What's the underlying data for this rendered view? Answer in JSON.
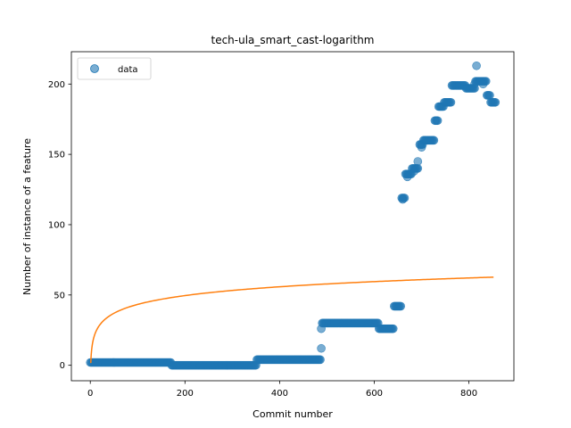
{
  "chart_data": {
    "type": "scatter",
    "title": "tech-ula_smart_cast-logarithm",
    "xlabel": "Commit number",
    "ylabel": "Number of instance of a feature",
    "xlim": [
      -40,
      895
    ],
    "ylim": [
      -11,
      223
    ],
    "xticks": [
      0,
      200,
      400,
      600,
      800
    ],
    "yticks": [
      0,
      50,
      100,
      150,
      200
    ],
    "grid": false,
    "legend": {
      "position": "top-left",
      "entries": [
        "data"
      ]
    },
    "colors": {
      "data": "#1f77b4",
      "fit": "#ff7f0e"
    },
    "series": [
      {
        "name": "data",
        "kind": "scatter",
        "segments": [
          {
            "x_start": 0,
            "x_end": 170,
            "y": 2,
            "step": 2
          },
          {
            "x_start": 172,
            "x_end": 350,
            "y": 0,
            "step": 2
          },
          {
            "x_start": 352,
            "x_end": 486,
            "y": 4,
            "step": 2
          },
          {
            "x_start": 490,
            "x_end": 608,
            "y": 30,
            "step": 2
          },
          {
            "x_start": 610,
            "x_end": 640,
            "y": 26,
            "step": 2
          },
          {
            "x_start": 642,
            "x_end": 656,
            "y": 42,
            "step": 2
          },
          {
            "x_start": 658,
            "x_end": 664,
            "y": 119,
            "step": 2
          },
          {
            "x_start": 666,
            "x_end": 678,
            "y": 136,
            "step": 2
          },
          {
            "x_start": 680,
            "x_end": 692,
            "y": 140,
            "step": 2
          },
          {
            "x_start": 696,
            "x_end": 702,
            "y": 157,
            "step": 2
          },
          {
            "x_start": 704,
            "x_end": 726,
            "y": 160,
            "step": 2
          },
          {
            "x_start": 728,
            "x_end": 734,
            "y": 174,
            "step": 2
          },
          {
            "x_start": 736,
            "x_end": 746,
            "y": 184,
            "step": 2
          },
          {
            "x_start": 748,
            "x_end": 762,
            "y": 187,
            "step": 2
          },
          {
            "x_start": 764,
            "x_end": 792,
            "y": 199,
            "step": 2
          },
          {
            "x_start": 794,
            "x_end": 812,
            "y": 197,
            "step": 2
          },
          {
            "x_start": 814,
            "x_end": 836,
            "y": 202,
            "step": 2
          },
          {
            "x_start": 838,
            "x_end": 844,
            "y": 192,
            "step": 2
          },
          {
            "x_start": 846,
            "x_end": 856,
            "y": 187,
            "step": 2
          }
        ],
        "points": [
          [
            488,
            26
          ],
          [
            488,
            12
          ],
          [
            692,
            145
          ],
          [
            684,
            138
          ],
          [
            816,
            213
          ],
          [
            660,
            118
          ],
          [
            670,
            134
          ],
          [
            700,
            155
          ],
          [
            830,
            200
          ],
          [
            812,
            200
          ]
        ]
      },
      {
        "name": "",
        "kind": "line",
        "model": "a + b*log(x)",
        "a": 1.6,
        "b": 9.05,
        "x_range": [
          1,
          855
        ]
      }
    ]
  }
}
